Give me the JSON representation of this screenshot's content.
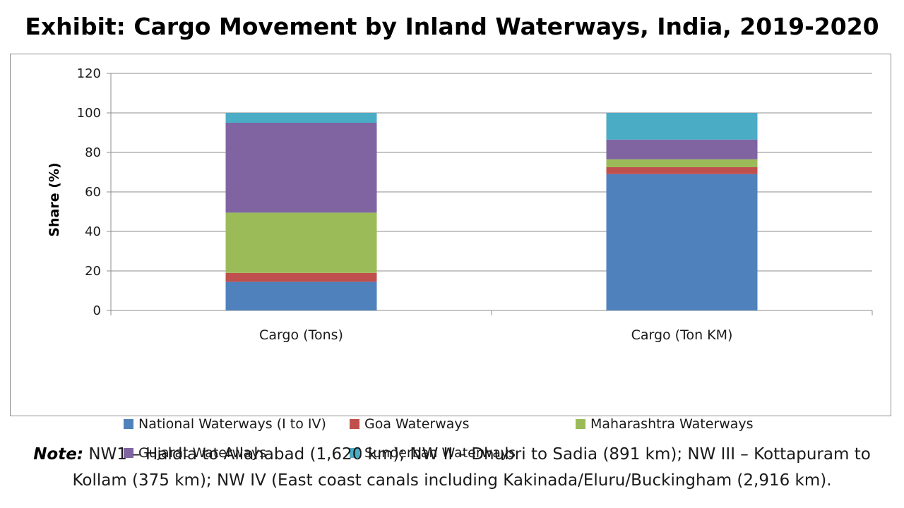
{
  "title": "Exhibit: Cargo Movement by Inland Waterways, India, 2019-2020",
  "note_label": "Note:",
  "note_text": "NW1 – Haldia to Allahabad (1,620 km); NW II – Dhubri to Sadia (891 km); NW III – Kottapuram to Kollam (375 km); NW IV (East coast canals including Kakinada/Eluru/Buckingham (2,916 km).",
  "chart_data": {
    "type": "bar",
    "stacked": true,
    "title": "",
    "xlabel": "",
    "ylabel": "Share (%)",
    "ylim": [
      0,
      120
    ],
    "yticks": [
      0,
      20,
      40,
      60,
      80,
      100,
      120
    ],
    "grid": true,
    "legend_position": "bottom",
    "categories": [
      "Cargo (Tons)",
      "Cargo (Ton KM)"
    ],
    "series": [
      {
        "name": "National Waterways (I to IV)",
        "color": "#4f81bd",
        "values": [
          14.5,
          69
        ]
      },
      {
        "name": "Goa Waterways",
        "color": "#c0504d",
        "values": [
          4.5,
          3.5
        ]
      },
      {
        "name": "Maharashtra Waterways",
        "color": "#9bbb59",
        "values": [
          30.5,
          4
        ]
      },
      {
        "name": "Gujarat Waterways",
        "color": "#8064a2",
        "values": [
          45.5,
          10
        ]
      },
      {
        "name": "Sunderban Waterways",
        "color": "#4bacc6",
        "values": [
          5,
          13.5
        ]
      }
    ]
  }
}
